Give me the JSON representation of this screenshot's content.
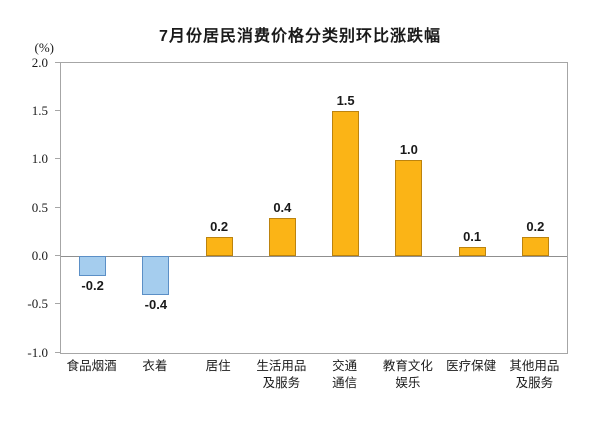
{
  "chart_data": {
    "type": "bar",
    "title": "7月份居民消费价格分类别环比涨跌幅",
    "ylabel": "(%)",
    "categories": [
      "食品烟酒",
      "衣着",
      "居住",
      "生活用品\n及服务",
      "交通\n通信",
      "教育文化\n娱乐",
      "医疗保健",
      "其他用品\n及服务"
    ],
    "values": [
      -0.2,
      -0.4,
      0.2,
      0.4,
      1.5,
      1.0,
      0.1,
      0.2
    ],
    "value_labels": [
      "-0.2",
      "-0.4",
      "0.2",
      "0.4",
      "1.5",
      "1.0",
      "0.1",
      "0.2"
    ],
    "ylim": [
      -1.0,
      2.0
    ],
    "yticks": [
      "2.0",
      "1.5",
      "1.0",
      "0.5",
      "0.0",
      "-0.5",
      "-1.0"
    ],
    "grid": false,
    "legend": "none",
    "colors": {
      "positive_fill": "#FBB416",
      "positive_border": "#BC830E",
      "negative_fill": "#A5CDEE",
      "negative_border": "#5B8FC6",
      "plot_border": "#A6A6A6",
      "zero_line": "#8F8F8F",
      "text": "#1A1A1A"
    }
  }
}
